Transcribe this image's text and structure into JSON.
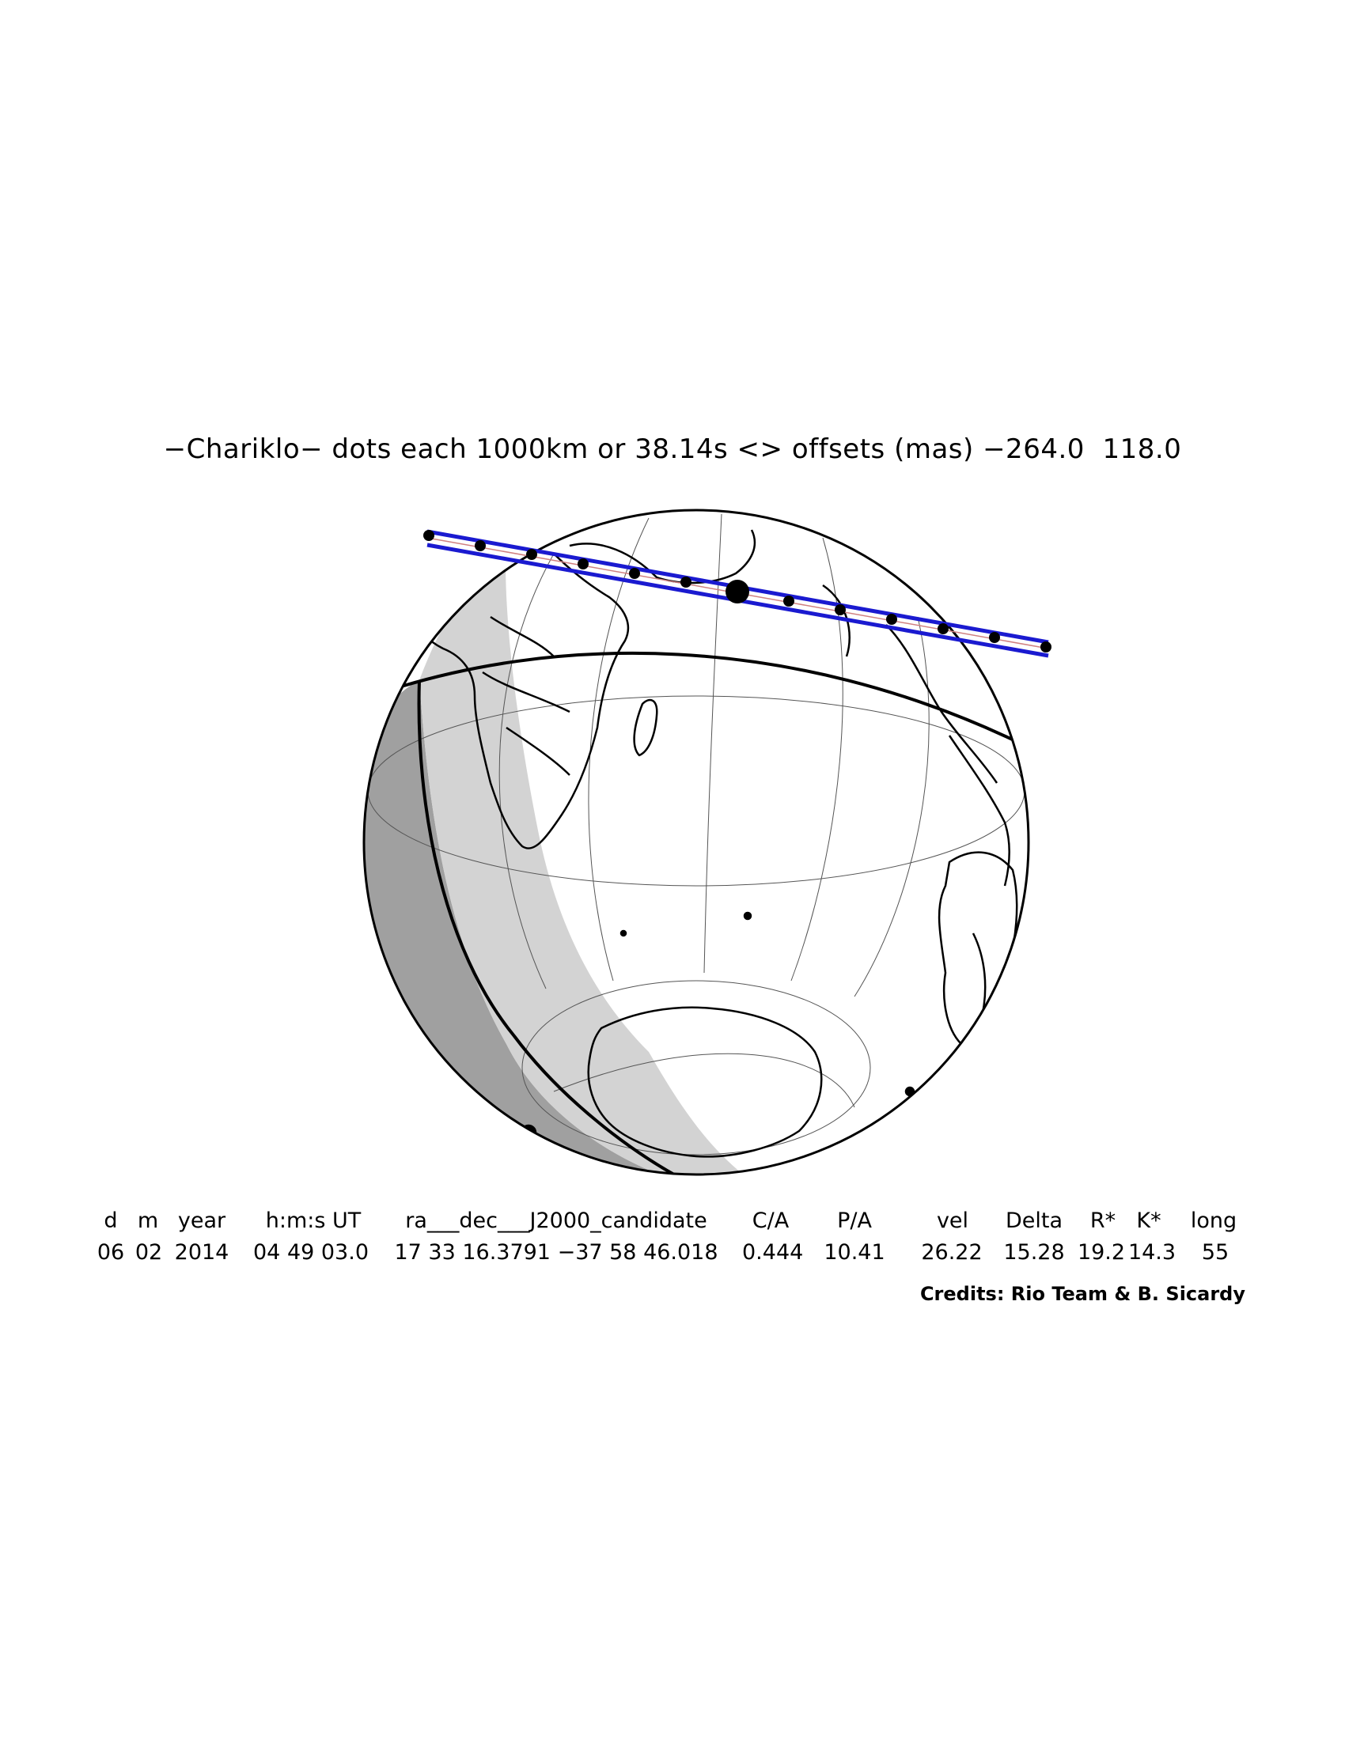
{
  "title": "−Chariklo− dots each 1000km or 38.14s <> offsets (mas) −264.0  118.0",
  "headers": [
    "d",
    "m",
    "year",
    "h:m:s UT",
    "ra___dec___J2000_candidate",
    "C/A",
    "P/A",
    "vel",
    "Delta",
    "R*",
    "K*",
    "long"
  ],
  "values": [
    "06",
    "02",
    "2014",
    "04 49 03.0",
    "17 33 16.3791 −37 58 46.018",
    "0.444",
    "10.41",
    "26.22",
    "15.28",
    "19.2",
    "14.3",
    "55"
  ],
  "credits": "Credits: Rio Team & B. Sicardy",
  "colors": {
    "ocean": "#ffffff",
    "penumbra": "#d3d3d3",
    "night": "#a0a0a0",
    "outline": "#000000",
    "track": "#1a1ad0",
    "centerline": "#d08080"
  },
  "icons": [
    "globe-icon",
    "shadow-track-icon",
    "occultation-dot-icon"
  ]
}
